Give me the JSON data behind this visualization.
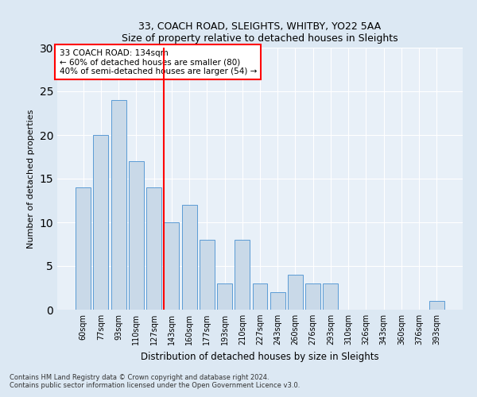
{
  "title1": "33, COACH ROAD, SLEIGHTS, WHITBY, YO22 5AA",
  "title2": "Size of property relative to detached houses in Sleights",
  "xlabel": "Distribution of detached houses by size in Sleights",
  "ylabel": "Number of detached properties",
  "categories": [
    "60sqm",
    "77sqm",
    "93sqm",
    "110sqm",
    "127sqm",
    "143sqm",
    "160sqm",
    "177sqm",
    "193sqm",
    "210sqm",
    "227sqm",
    "243sqm",
    "260sqm",
    "276sqm",
    "293sqm",
    "310sqm",
    "326sqm",
    "343sqm",
    "360sqm",
    "376sqm",
    "393sqm"
  ],
  "values": [
    14,
    20,
    24,
    17,
    14,
    10,
    12,
    8,
    3,
    8,
    3,
    2,
    4,
    3,
    3,
    0,
    0,
    0,
    0,
    0,
    1
  ],
  "bar_color": "#c9d9e8",
  "bar_edge_color": "#5b9bd5",
  "vline_x": 4.57,
  "vline_color": "red",
  "annotation_text": "33 COACH ROAD: 134sqm\n← 60% of detached houses are smaller (80)\n40% of semi-detached houses are larger (54) →",
  "annotation_box_color": "white",
  "annotation_box_edge_color": "red",
  "ylim": [
    0,
    30
  ],
  "yticks": [
    0,
    5,
    10,
    15,
    20,
    25,
    30
  ],
  "footnote1": "Contains HM Land Registry data © Crown copyright and database right 2024.",
  "footnote2": "Contains public sector information licensed under the Open Government Licence v3.0.",
  "bg_color": "#dce8f3",
  "plot_bg_color": "#e8f0f8"
}
